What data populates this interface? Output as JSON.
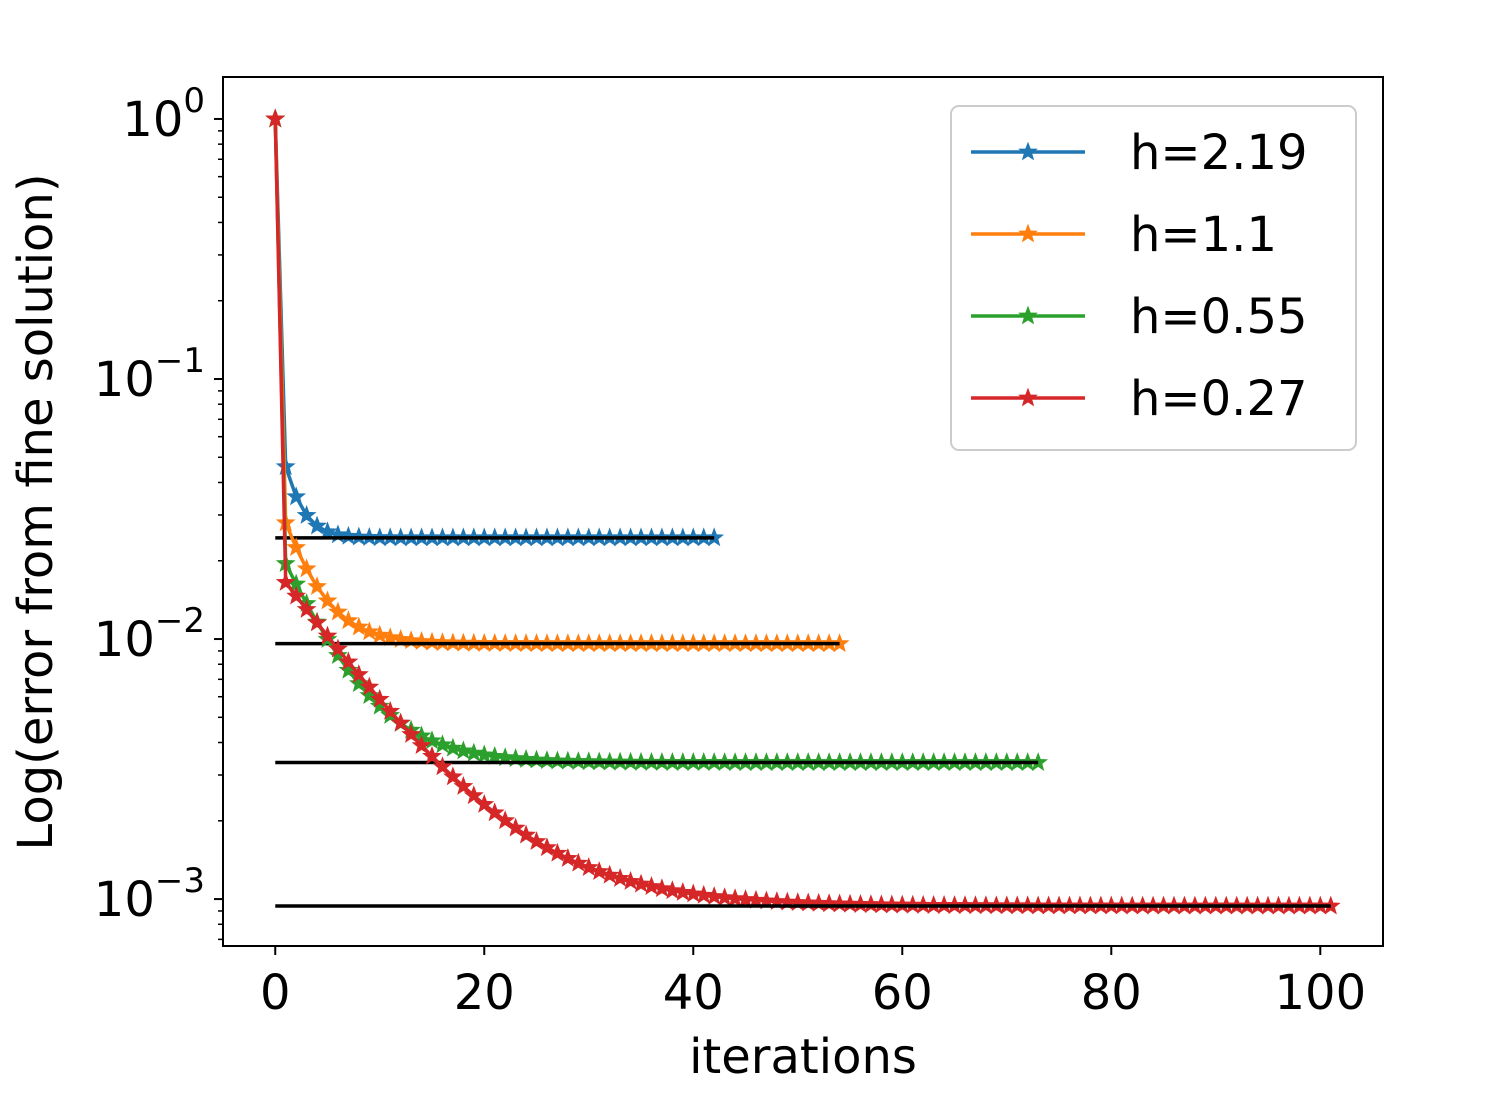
{
  "chart_data": {
    "type": "line",
    "xlabel": "iterations",
    "ylabel": "Log(error from fine solution)",
    "yscale": "log",
    "xlim": [
      -5,
      106
    ],
    "ylim": [
      0.00066,
      1.45
    ],
    "x_ticks": [
      0,
      20,
      40,
      60,
      80,
      100
    ],
    "x_tick_labels": [
      "0",
      "20",
      "40",
      "60",
      "80",
      "100"
    ],
    "y_ticks": [
      {
        "value": 1,
        "base": "10",
        "exp": "0"
      },
      {
        "value": 0.1,
        "base": "10",
        "exp": "−1"
      },
      {
        "value": 0.01,
        "base": "10",
        "exp": "−2"
      },
      {
        "value": 0.001,
        "base": "10",
        "exp": "−3"
      }
    ],
    "legend_position": "top-right",
    "marker": "star",
    "series": [
      {
        "name": "h=2.19",
        "color": "#1f77b4",
        "n_iterations": 42,
        "start": 1.0,
        "first": 0.046,
        "final": 0.0245,
        "decay": 0.5,
        "reference_level": 0.0245
      },
      {
        "name": "h=1.1",
        "color": "#ff7f0e",
        "n_iterations": 54,
        "start": 1.0,
        "first": 0.028,
        "final": 0.0096,
        "decay": 0.7,
        "reference_level": 0.0096
      },
      {
        "name": "h=0.55",
        "color": "#2ca02c",
        "n_iterations": 73,
        "start": 1.0,
        "first": 0.0195,
        "final": 0.00335,
        "decay": 0.8,
        "reference_level": 0.00335
      },
      {
        "name": "h=0.27",
        "color": "#d62728",
        "n_iterations": 101,
        "start": 1.0,
        "first": 0.0165,
        "final": 0.00094,
        "decay": 0.88,
        "reference_level": 0.00094
      }
    ],
    "reference_line_color": "#000000"
  }
}
